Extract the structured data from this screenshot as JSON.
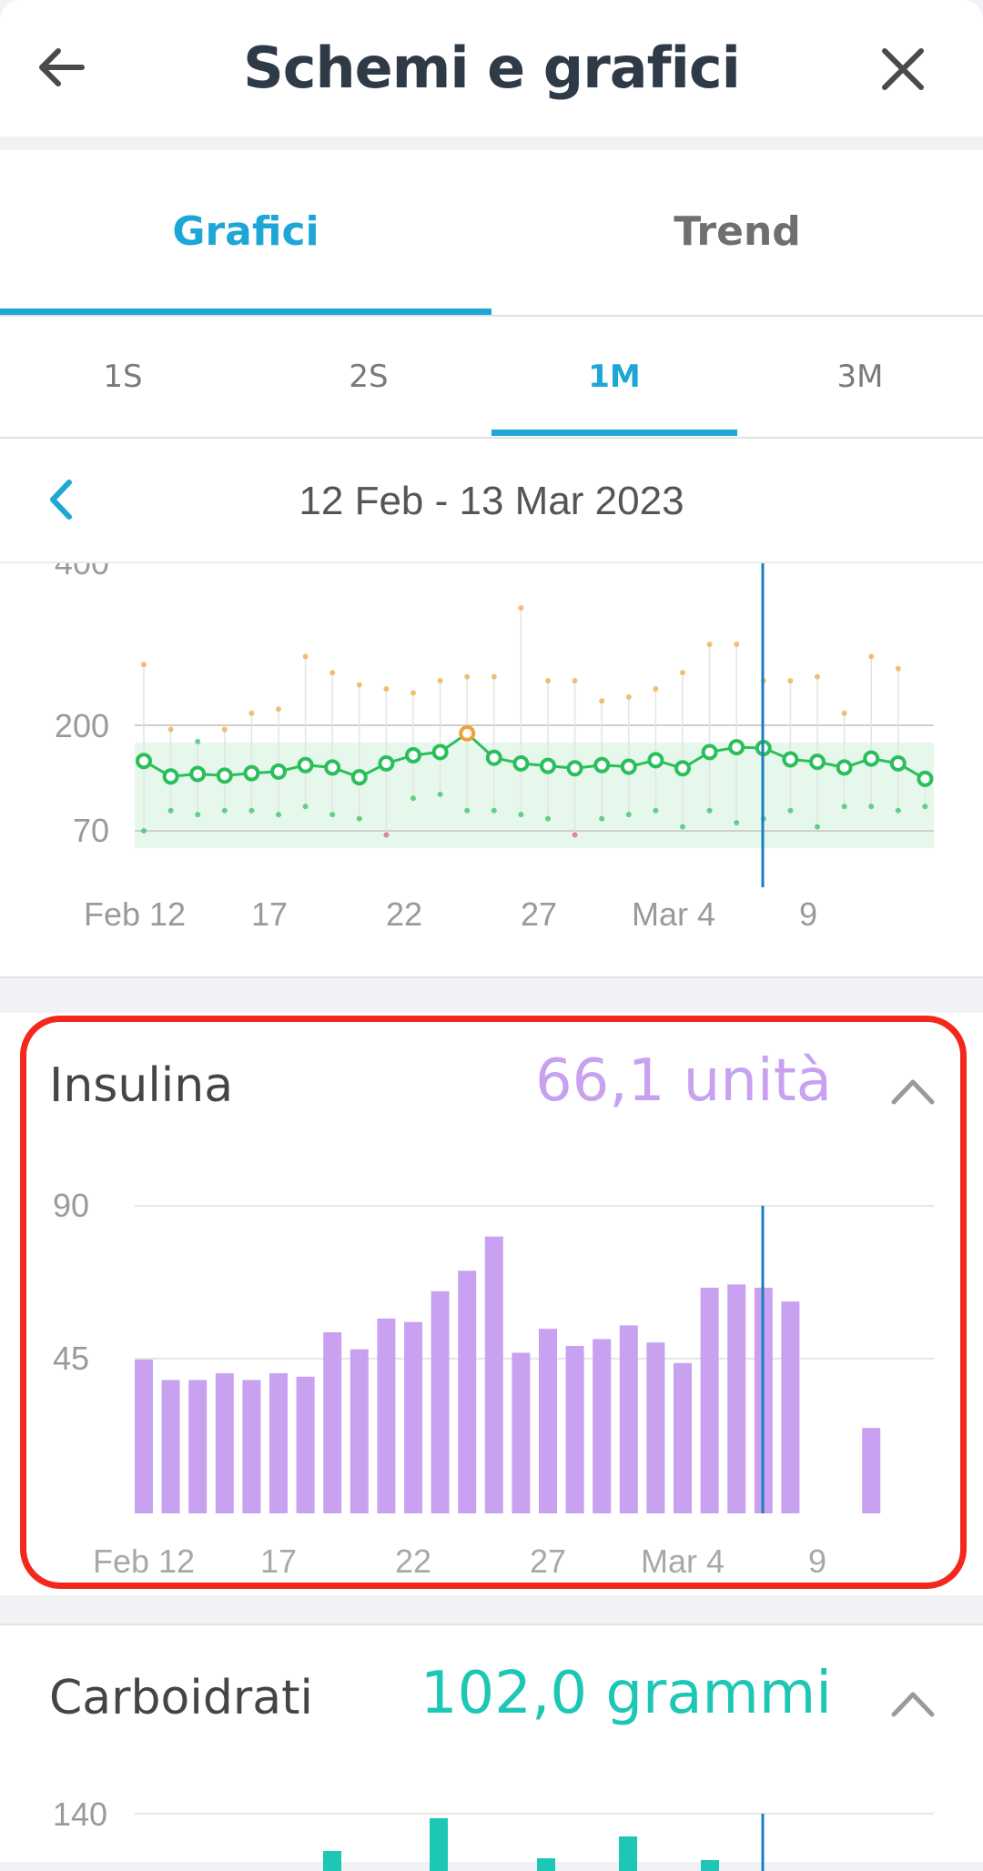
{
  "header": {
    "title": "Schemi e grafici"
  },
  "tabs": [
    {
      "label": "Grafici",
      "active": true
    },
    {
      "label": "Trend",
      "active": false
    }
  ],
  "ranges": [
    {
      "label": "1S"
    },
    {
      "label": "2S"
    },
    {
      "label": "1M",
      "active": true
    },
    {
      "label": "3M"
    }
  ],
  "date_range": {
    "label": "12 Feb - 13 Mar 2023"
  },
  "colors": {
    "accent": "#1ea6d6",
    "glucose_line": "#2bbf5b",
    "glucose_high": "#f0a23a",
    "glucose_low": "#e0557a",
    "insulin": "#c8a2f0",
    "carbs": "#1ec7b5",
    "highlight": "#f2281d"
  },
  "glucose": {
    "y_ticks": [
      "400",
      "200",
      "70"
    ],
    "x_ticks": [
      "Feb 12",
      "17",
      "22",
      "27",
      "Mar 4",
      "9"
    ]
  },
  "insulin": {
    "title": "Insulina",
    "value": "66,1 unità",
    "y_ticks": [
      "90",
      "45"
    ],
    "x_ticks": [
      "Feb 12",
      "17",
      "22",
      "27",
      "Mar 4",
      "9"
    ]
  },
  "carbs": {
    "title": "Carboidrati",
    "value": "102,0 grammi",
    "y_ticks": [
      "140"
    ]
  },
  "chart_data": [
    {
      "type": "line",
      "title": "",
      "x": [
        "Feb 12",
        "Feb 13",
        "Feb 14",
        "Feb 15",
        "Feb 16",
        "Feb 17",
        "Feb 18",
        "Feb 19",
        "Feb 20",
        "Feb 21",
        "Feb 22",
        "Feb 23",
        "Feb 24",
        "Feb 25",
        "Feb 26",
        "Feb 27",
        "Feb 28",
        "Mar 1",
        "Mar 2",
        "Mar 3",
        "Mar 4",
        "Mar 5",
        "Mar 6",
        "Mar 7",
        "Mar 8",
        "Mar 9",
        "Mar 10",
        "Mar 11",
        "Mar 12",
        "Mar 13"
      ],
      "series": [
        {
          "values": [
            156,
            137,
            140,
            138,
            141,
            143,
            151,
            148,
            136,
            153,
            163,
            167,
            190,
            160,
            153,
            150,
            147,
            151,
            149,
            157,
            147,
            167,
            173,
            172,
            158,
            155,
            148,
            159,
            153,
            134
          ]
        }
      ],
      "range_high": [
        275,
        195,
        180,
        195,
        215,
        220,
        285,
        265,
        250,
        245,
        240,
        255,
        260,
        260,
        345,
        255,
        255,
        230,
        235,
        245,
        265,
        300,
        300,
        255,
        255,
        260,
        215,
        285,
        270,
        null
      ],
      "range_low": [
        70,
        95,
        90,
        95,
        95,
        90,
        100,
        90,
        85,
        65,
        110,
        115,
        95,
        95,
        90,
        85,
        65,
        85,
        90,
        95,
        75,
        95,
        80,
        85,
        95,
        75,
        100,
        100,
        95,
        100
      ],
      "ylim": [
        70,
        400
      ],
      "target_range": [
        70,
        180
      ],
      "grid": true
    },
    {
      "type": "bar",
      "title": "",
      "categories": [
        "Feb 12",
        "Feb 13",
        "Feb 14",
        "Feb 15",
        "Feb 16",
        "Feb 17",
        "Feb 18",
        "Feb 19",
        "Feb 20",
        "Feb 21",
        "Feb 22",
        "Feb 23",
        "Feb 24",
        "Feb 25",
        "Feb 26",
        "Feb 27",
        "Feb 28",
        "Mar 1",
        "Mar 2",
        "Mar 3",
        "Mar 4",
        "Mar 5",
        "Mar 6",
        "Mar 7",
        "Mar 8",
        "Mar 9",
        "Mar 10",
        "Mar 11",
        "Mar 12",
        "Mar 13"
      ],
      "values": [
        45,
        39,
        39,
        41,
        39,
        41,
        40,
        53,
        48,
        57,
        56,
        65,
        71,
        81,
        47,
        54,
        49,
        51,
        55,
        50,
        44,
        66,
        67,
        66,
        62,
        null,
        null,
        25,
        null,
        null
      ],
      "ylim": [
        0,
        90
      ],
      "grid": true
    }
  ]
}
